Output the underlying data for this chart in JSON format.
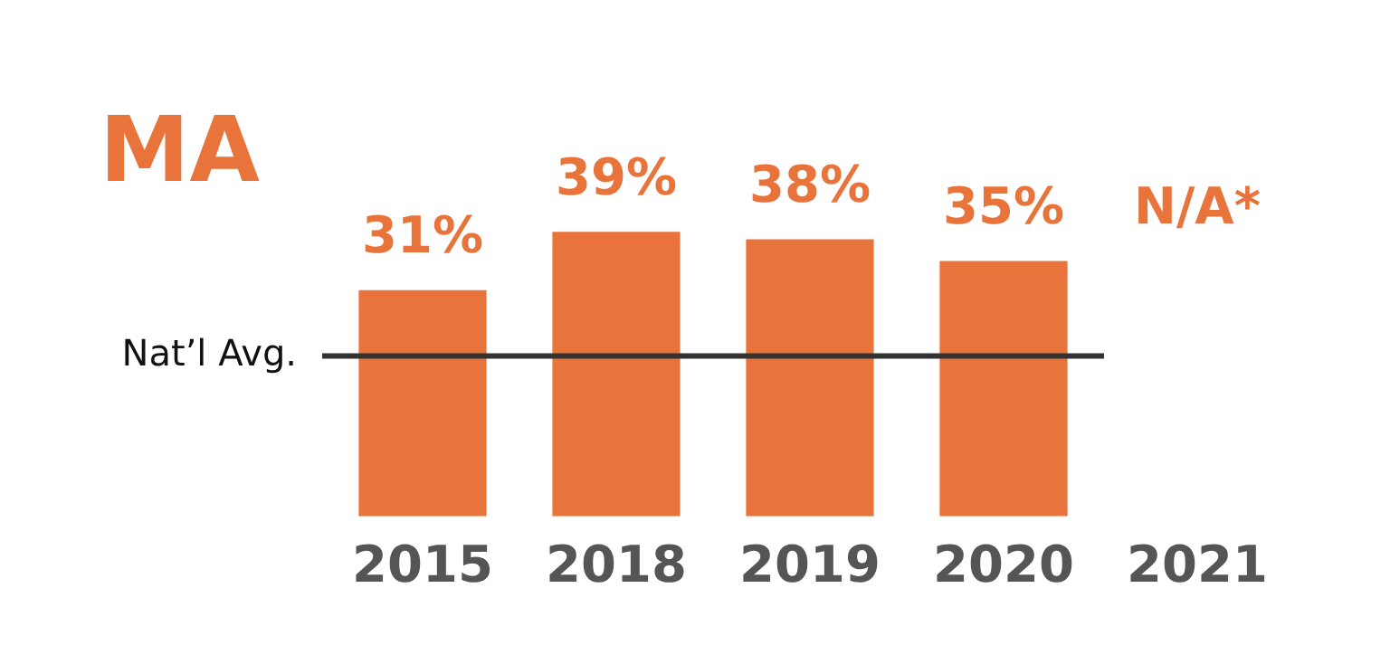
{
  "chart_data": {
    "type": "bar",
    "title": "MA",
    "categories": [
      "2015",
      "2018",
      "2019",
      "2020",
      "2021"
    ],
    "values": [
      31,
      39,
      38,
      35,
      null
    ],
    "color": "#e8743b",
    "value_labels": [
      "31%",
      "39%",
      "38%",
      "35%",
      "N/A*"
    ],
    "tick_labels": "x",
    "grid": false,
    "legend": false,
    "ref_lines": [
      {
        "axis": "y",
        "value": 22,
        "label": "Nat’l Avg.",
        "color": "#333333"
      }
    ]
  }
}
